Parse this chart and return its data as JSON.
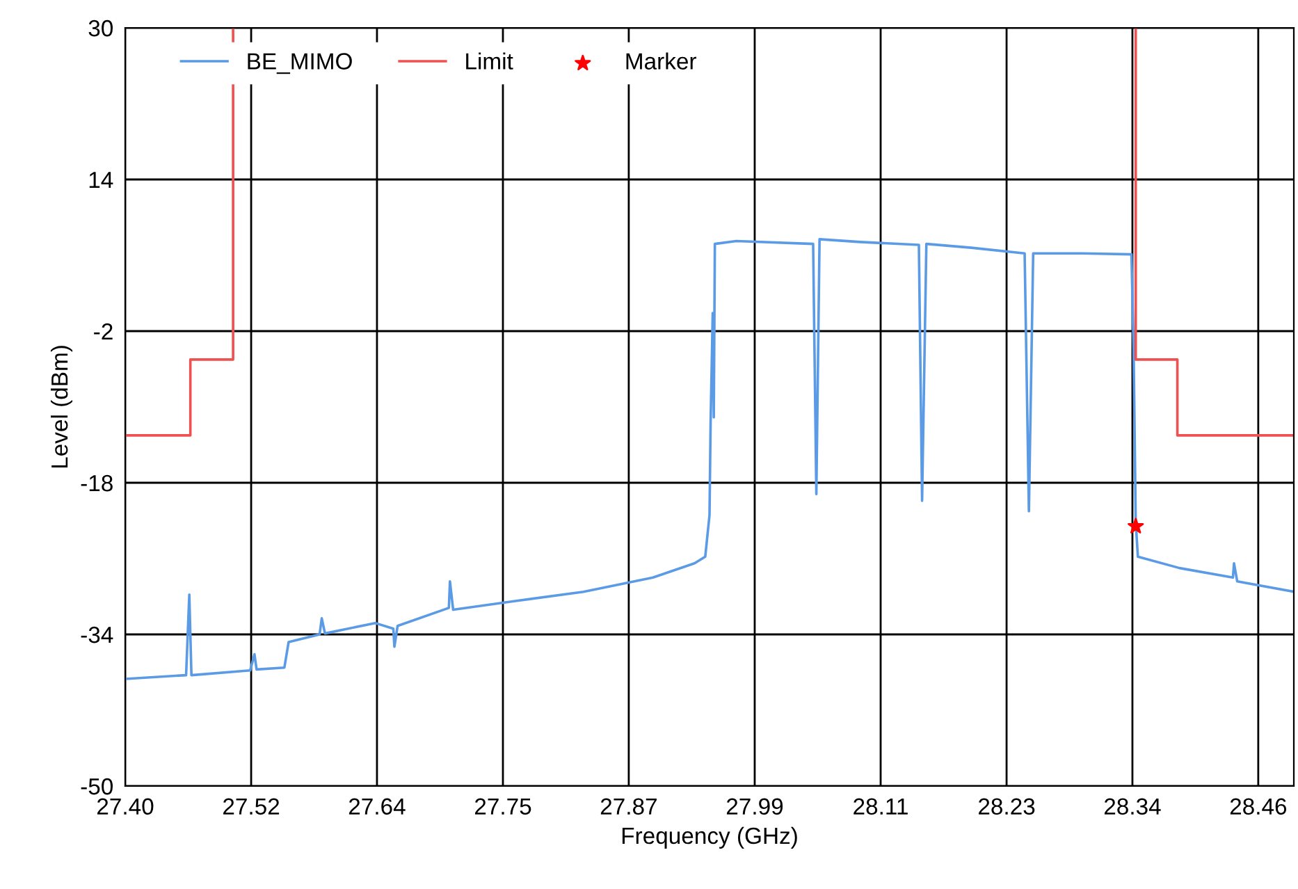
{
  "chart_data": {
    "type": "line",
    "xlabel": "Frequency (GHz)",
    "ylabel": "Level (dBm)",
    "xlim": [
      27.4,
      28.494
    ],
    "ylim": [
      -50,
      30
    ],
    "xticks": [
      {
        "value": 27.4,
        "label": "27.40"
      },
      {
        "value": 27.5179,
        "label": "27.52"
      },
      {
        "value": 27.6357,
        "label": "27.64"
      },
      {
        "value": 27.7536,
        "label": "27.75"
      },
      {
        "value": 27.8714,
        "label": "27.87"
      },
      {
        "value": 27.9893,
        "label": "27.99"
      },
      {
        "value": 28.1072,
        "label": "28.11"
      },
      {
        "value": 28.2251,
        "label": "28.23"
      },
      {
        "value": 28.3429,
        "label": "28.34"
      },
      {
        "value": 28.4607,
        "label": "28.46"
      }
    ],
    "yticks": [
      -50,
      -34,
      -18,
      -2,
      14,
      30
    ],
    "grid": true,
    "legend": "top left",
    "marker": "none",
    "line_style": "solid",
    "series": [
      {
        "name": "BE_MIMO",
        "color": "#5b9be6",
        "x": [
          27.4,
          27.457,
          27.46,
          27.462,
          27.517,
          27.521,
          27.523,
          27.549,
          27.553,
          27.582,
          27.584,
          27.587,
          27.634,
          27.651,
          27.652,
          27.655,
          27.703,
          27.704,
          27.707,
          27.764,
          27.829,
          27.894,
          27.933,
          27.943,
          27.947,
          27.948,
          27.95,
          27.951,
          27.952,
          27.972,
          28.044,
          28.047,
          28.05,
          28.088,
          28.143,
          28.146,
          28.15,
          28.192,
          28.242,
          28.246,
          28.25,
          28.296,
          28.342,
          28.344,
          28.346,
          28.348,
          28.387,
          28.437,
          28.438,
          28.441,
          28.494
        ],
        "values": [
          -38.7,
          -38.3,
          -29.8,
          -38.3,
          -37.8,
          -36.1,
          -37.7,
          -37.5,
          -34.8,
          -34.0,
          -32.3,
          -33.9,
          -32.8,
          -33.4,
          -35.3,
          -33.1,
          -31.2,
          -28.4,
          -31.4,
          -30.5,
          -29.5,
          -28.0,
          -26.5,
          -25.8,
          -21.4,
          -11.8,
          -0.1,
          -11.1,
          7.2,
          7.5,
          7.2,
          -19.2,
          7.7,
          7.4,
          7.1,
          -19.9,
          7.2,
          6.8,
          6.2,
          -21.0,
          6.2,
          6.2,
          6.1,
          -3.8,
          -22.1,
          -25.8,
          -27.0,
          -28.0,
          -26.5,
          -28.4,
          -29.5
        ]
      },
      {
        "name": "Limit",
        "color": "#f05050",
        "x": [
          27.4,
          27.461,
          27.461,
          27.501,
          27.501,
          27.9,
          28.346,
          28.346,
          28.385,
          28.385,
          28.494
        ],
        "values": [
          -13,
          -13,
          -5,
          -5,
          30,
          null,
          30,
          -5,
          -5,
          -13,
          -13
        ]
      },
      {
        "name": "Marker",
        "type": "scatter",
        "marker": "star",
        "color": "#ff0000",
        "x": [
          28.346
        ],
        "values": [
          -22.6
        ]
      }
    ]
  }
}
